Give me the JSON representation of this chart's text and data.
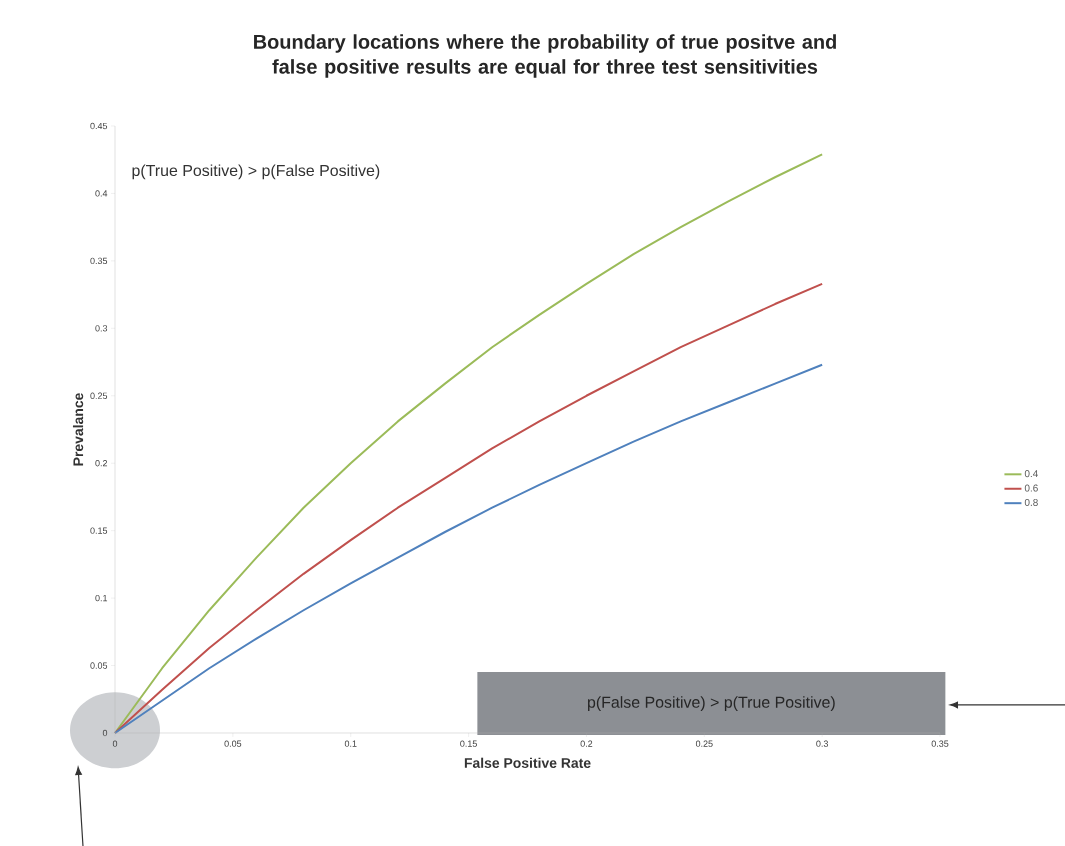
{
  "chart_data": {
    "type": "line",
    "title": "Boundary locations where the probability of true positve and false positive results are equal for three test sensitivities",
    "xlabel": "False Positive Rate",
    "ylabel": "Prevalance",
    "x": [
      0,
      0.02,
      0.04,
      0.06,
      0.08,
      0.1,
      0.12,
      0.14,
      0.16,
      0.18,
      0.2,
      0.22,
      0.24,
      0.26,
      0.28,
      0.3
    ],
    "series": [
      {
        "name": "0.4",
        "color": "#9bbb59",
        "values": [
          0,
          0.048,
          0.091,
          0.13,
          0.167,
          0.2,
          0.231,
          0.259,
          0.286,
          0.31,
          0.333,
          0.355,
          0.375,
          0.394,
          0.412,
          0.429
        ]
      },
      {
        "name": "0.6",
        "color": "#c0504d",
        "values": [
          0,
          0.032,
          0.063,
          0.091,
          0.118,
          0.143,
          0.167,
          0.189,
          0.211,
          0.231,
          0.25,
          0.268,
          0.286,
          0.302,
          0.318,
          0.333
        ]
      },
      {
        "name": "0.8",
        "color": "#4f81bd",
        "values": [
          0,
          0.024,
          0.048,
          0.07,
          0.091,
          0.111,
          0.13,
          0.149,
          0.167,
          0.184,
          0.2,
          0.216,
          0.231,
          0.245,
          0.259,
          0.273
        ]
      }
    ],
    "xlim": [
      0,
      0.35
    ],
    "xticks": [
      0,
      0.05,
      0.1,
      0.15,
      0.2,
      0.25,
      0.3,
      0.35
    ],
    "ylim": [
      0,
      0.45
    ],
    "yticks": [
      0,
      0.05,
      0.1,
      0.15,
      0.2,
      0.25,
      0.3,
      0.35,
      0.4,
      0.45
    ],
    "annotations": [
      "p(True Positive) > p(False Positive)",
      "p(False Positive) > p(True Positive)"
    ],
    "legend": "right",
    "grid": false,
    "marker": "none",
    "line_style": "solid"
  }
}
